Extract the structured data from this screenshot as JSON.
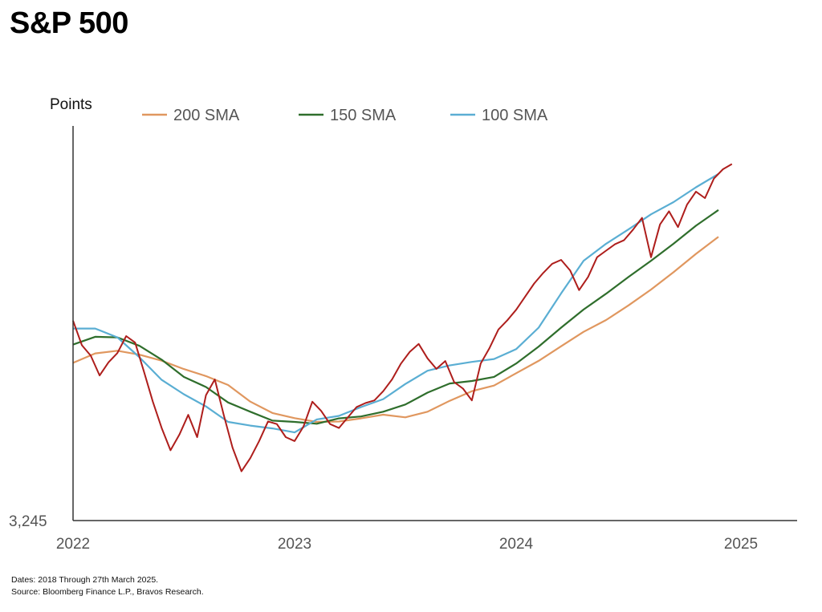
{
  "title": "S&P 500",
  "footnotes": {
    "dates": "Dates: 2018 Through 27th March 2025.",
    "source": "Source: Bloomberg Finance L.P., Bravos Research."
  },
  "colors": {
    "price": "#ae1e1c",
    "sma200": "#e0975f",
    "sma150": "#2f6e2c",
    "sma100": "#5aaed3",
    "axis": "#333333",
    "tick_text": "#555555"
  },
  "chart_data": {
    "type": "line",
    "title": "S&P 500",
    "ylabel": "Points",
    "xlabel": "",
    "y_tick_labels": [
      "3,245"
    ],
    "x_tick_labels": [
      "2022",
      "2023",
      "2024",
      "2025"
    ],
    "xlim": [
      2022.0,
      2025.27
    ],
    "ylim": [
      3245,
      6250
    ],
    "grid": false,
    "legend": {
      "position": "top",
      "entries": [
        "200 SMA",
        "150 SMA",
        "100 SMA"
      ]
    },
    "series": [
      {
        "name": "200 SMA",
        "color": "#e0975f",
        "x": [
          2022.0,
          2022.1,
          2022.2,
          2022.3,
          2022.4,
          2022.5,
          2022.6,
          2022.7,
          2022.8,
          2022.9,
          2023.0,
          2023.1,
          2023.2,
          2023.3,
          2023.4,
          2023.5,
          2023.6,
          2023.7,
          2023.8,
          2023.9,
          2024.0,
          2024.1,
          2024.2,
          2024.3,
          2024.4,
          2024.5,
          2024.6,
          2024.7,
          2024.8,
          2024.9,
          2025.0,
          2025.1,
          2025.22
        ],
        "values": [
          4446,
          4518,
          4538,
          4508,
          4462,
          4399,
          4345,
          4277,
          4151,
          4064,
          4025,
          3996,
          3999,
          4023,
          4051,
          4031,
          4074,
          4157,
          4230,
          4273,
          4367,
          4461,
          4572,
          4682,
          4772,
          4884,
          5004,
          5136,
          5276,
          5406,
          5523,
          5625,
          5737
        ]
      },
      {
        "name": "150 SMA",
        "color": "#2f6e2c",
        "x": [
          2022.0,
          2022.1,
          2022.2,
          2022.3,
          2022.4,
          2022.5,
          2022.6,
          2022.7,
          2022.8,
          2022.9,
          2023.0,
          2023.1,
          2023.2,
          2023.3,
          2023.4,
          2023.5,
          2023.6,
          2023.7,
          2023.8,
          2023.9,
          2024.0,
          2024.1,
          2024.2,
          2024.3,
          2024.4,
          2024.5,
          2024.6,
          2024.7,
          2024.8,
          2024.9,
          2025.0,
          2025.1,
          2025.22
        ],
        "values": [
          4585,
          4644,
          4640,
          4575,
          4470,
          4339,
          4262,
          4144,
          4074,
          4006,
          3996,
          3982,
          4023,
          4038,
          4074,
          4129,
          4219,
          4289,
          4308,
          4339,
          4441,
          4570,
          4714,
          4852,
          4972,
          5100,
          5223,
          5353,
          5490,
          5610,
          5707,
          5798,
          5887
        ]
      },
      {
        "name": "100 SMA",
        "color": "#5aaed3",
        "x": [
          2022.0,
          2022.1,
          2022.2,
          2022.3,
          2022.4,
          2022.5,
          2022.6,
          2022.7,
          2022.8,
          2022.9,
          2023.0,
          2023.1,
          2023.2,
          2023.3,
          2023.4,
          2023.5,
          2023.6,
          2023.7,
          2023.8,
          2023.9,
          2024.0,
          2024.1,
          2024.2,
          2024.3,
          2024.4,
          2024.5,
          2024.6,
          2024.7,
          2024.8,
          2024.9,
          2025.0,
          2025.1,
          2025.22
        ],
        "values": [
          4707,
          4707,
          4640,
          4488,
          4316,
          4207,
          4114,
          3996,
          3968,
          3947,
          3916,
          4015,
          4042,
          4109,
          4170,
          4285,
          4386,
          4426,
          4453,
          4475,
          4550,
          4714,
          4975,
          5223,
          5353,
          5463,
          5577,
          5670,
          5783,
          5885,
          5977,
          6062,
          6135
        ]
      },
      {
        "name": "",
        "color": "#ae1e1c",
        "x": [
          2022.0,
          2022.04,
          2022.08,
          2022.12,
          2022.16,
          2022.2,
          2022.24,
          2022.28,
          2022.32,
          2022.36,
          2022.4,
          2022.44,
          2022.48,
          2022.52,
          2022.56,
          2022.6,
          2022.64,
          2022.68,
          2022.72,
          2022.76,
          2022.8,
          2022.84,
          2022.88,
          2022.92,
          2022.96,
          2023.0,
          2023.04,
          2023.08,
          2023.12,
          2023.16,
          2023.2,
          2023.24,
          2023.28,
          2023.32,
          2023.36,
          2023.4,
          2023.44,
          2023.48,
          2023.52,
          2023.56,
          2023.6,
          2023.64,
          2023.68,
          2023.72,
          2023.76,
          2023.8,
          2023.84,
          2023.88,
          2023.92,
          2023.96,
          2024.0,
          2024.04,
          2024.08,
          2024.12,
          2024.16,
          2024.2,
          2024.24,
          2024.28,
          2024.32,
          2024.36,
          2024.4,
          2024.44,
          2024.48,
          2024.52,
          2024.56,
          2024.6,
          2024.64,
          2024.68,
          2024.72,
          2024.76,
          2024.8,
          2024.84,
          2024.88,
          2024.92,
          2024.96,
          2025.0,
          2025.04,
          2025.08,
          2025.12,
          2025.16,
          2025.19,
          2025.22,
          2025.24
        ],
        "values": [
          4767,
          4580,
          4500,
          4350,
          4450,
          4520,
          4650,
          4600,
          4380,
          4150,
          3950,
          3780,
          3900,
          4050,
          3880,
          4200,
          4320,
          4050,
          3800,
          3620,
          3720,
          3850,
          4000,
          3980,
          3880,
          3850,
          3960,
          4150,
          4080,
          3980,
          3950,
          4030,
          4110,
          4140,
          4160,
          4230,
          4320,
          4440,
          4530,
          4590,
          4480,
          4400,
          4460,
          4300,
          4250,
          4160,
          4440,
          4560,
          4700,
          4770,
          4850,
          4950,
          5050,
          5130,
          5200,
          5230,
          5150,
          5000,
          5100,
          5250,
          5300,
          5350,
          5380,
          5460,
          5550,
          5250,
          5500,
          5600,
          5480,
          5650,
          5750,
          5700,
          5850,
          5920,
          5960,
          5900,
          5950,
          6000,
          6100,
          6040,
          5900,
          5630,
          5720
        ]
      }
    ]
  }
}
